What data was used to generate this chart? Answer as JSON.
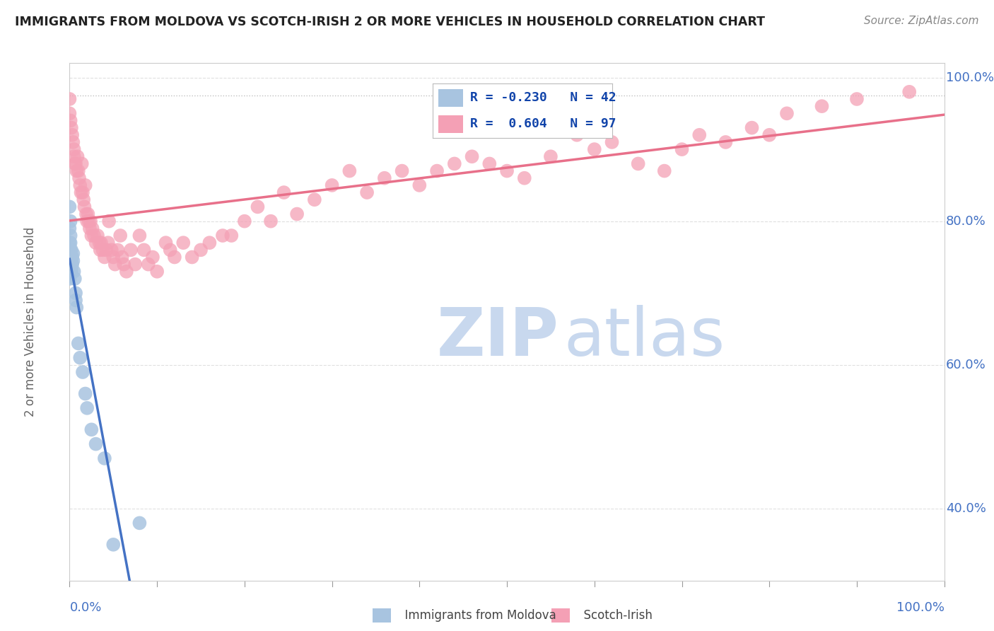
{
  "title": "IMMIGRANTS FROM MOLDOVA VS SCOTCH-IRISH 2 OR MORE VEHICLES IN HOUSEHOLD CORRELATION CHART",
  "source": "Source: ZipAtlas.com",
  "ylabel": "2 or more Vehicles in Household",
  "moldova_color": "#a8c4e0",
  "scotch_color": "#f4a0b5",
  "moldova_line_color": "#4472c4",
  "scotch_line_color": "#e8708a",
  "watermark_zip": "ZIP",
  "watermark_atlas": "atlas",
  "moldova_R": -0.23,
  "moldova_N": 42,
  "scotch_R": 0.604,
  "scotch_N": 97,
  "moldova_scatter": [
    [
      0.0,
      0.82
    ],
    [
      0.0,
      0.79
    ],
    [
      0.0,
      0.77
    ],
    [
      0.0,
      0.76
    ],
    [
      0.0,
      0.75
    ],
    [
      0.0,
      0.74
    ],
    [
      0.0,
      0.735
    ],
    [
      0.0,
      0.73
    ],
    [
      0.0,
      0.72
    ],
    [
      0.001,
      0.8
    ],
    [
      0.001,
      0.78
    ],
    [
      0.001,
      0.77
    ],
    [
      0.001,
      0.76
    ],
    [
      0.001,
      0.755
    ],
    [
      0.001,
      0.75
    ],
    [
      0.001,
      0.745
    ],
    [
      0.001,
      0.74
    ],
    [
      0.001,
      0.73
    ],
    [
      0.002,
      0.76
    ],
    [
      0.002,
      0.75
    ],
    [
      0.002,
      0.74
    ],
    [
      0.002,
      0.735
    ],
    [
      0.002,
      0.73
    ],
    [
      0.003,
      0.75
    ],
    [
      0.003,
      0.74
    ],
    [
      0.004,
      0.755
    ],
    [
      0.004,
      0.745
    ],
    [
      0.005,
      0.73
    ],
    [
      0.006,
      0.72
    ],
    [
      0.007,
      0.7
    ],
    [
      0.007,
      0.69
    ],
    [
      0.008,
      0.68
    ],
    [
      0.01,
      0.63
    ],
    [
      0.012,
      0.61
    ],
    [
      0.015,
      0.59
    ],
    [
      0.018,
      0.56
    ],
    [
      0.02,
      0.54
    ],
    [
      0.025,
      0.51
    ],
    [
      0.03,
      0.49
    ],
    [
      0.04,
      0.47
    ],
    [
      0.05,
      0.35
    ],
    [
      0.08,
      0.38
    ]
  ],
  "scotch_scatter": [
    [
      0.0,
      0.97
    ],
    [
      0.0,
      0.95
    ],
    [
      0.001,
      0.94
    ],
    [
      0.002,
      0.93
    ],
    [
      0.003,
      0.92
    ],
    [
      0.004,
      0.91
    ],
    [
      0.005,
      0.9
    ],
    [
      0.005,
      0.89
    ],
    [
      0.006,
      0.88
    ],
    [
      0.007,
      0.88
    ],
    [
      0.008,
      0.87
    ],
    [
      0.009,
      0.89
    ],
    [
      0.01,
      0.87
    ],
    [
      0.011,
      0.86
    ],
    [
      0.012,
      0.85
    ],
    [
      0.013,
      0.84
    ],
    [
      0.014,
      0.88
    ],
    [
      0.015,
      0.84
    ],
    [
      0.016,
      0.83
    ],
    [
      0.017,
      0.82
    ],
    [
      0.018,
      0.85
    ],
    [
      0.019,
      0.81
    ],
    [
      0.02,
      0.8
    ],
    [
      0.021,
      0.81
    ],
    [
      0.022,
      0.8
    ],
    [
      0.023,
      0.79
    ],
    [
      0.024,
      0.8
    ],
    [
      0.025,
      0.78
    ],
    [
      0.026,
      0.79
    ],
    [
      0.028,
      0.78
    ],
    [
      0.03,
      0.77
    ],
    [
      0.032,
      0.78
    ],
    [
      0.034,
      0.77
    ],
    [
      0.035,
      0.76
    ],
    [
      0.036,
      0.77
    ],
    [
      0.038,
      0.76
    ],
    [
      0.04,
      0.75
    ],
    [
      0.042,
      0.76
    ],
    [
      0.044,
      0.77
    ],
    [
      0.045,
      0.8
    ],
    [
      0.048,
      0.76
    ],
    [
      0.05,
      0.75
    ],
    [
      0.052,
      0.74
    ],
    [
      0.055,
      0.76
    ],
    [
      0.058,
      0.78
    ],
    [
      0.06,
      0.75
    ],
    [
      0.062,
      0.74
    ],
    [
      0.065,
      0.73
    ],
    [
      0.07,
      0.76
    ],
    [
      0.075,
      0.74
    ],
    [
      0.08,
      0.78
    ],
    [
      0.085,
      0.76
    ],
    [
      0.09,
      0.74
    ],
    [
      0.095,
      0.75
    ],
    [
      0.1,
      0.73
    ],
    [
      0.11,
      0.77
    ],
    [
      0.115,
      0.76
    ],
    [
      0.12,
      0.75
    ],
    [
      0.13,
      0.77
    ],
    [
      0.14,
      0.75
    ],
    [
      0.15,
      0.76
    ],
    [
      0.16,
      0.77
    ],
    [
      0.175,
      0.78
    ],
    [
      0.185,
      0.78
    ],
    [
      0.2,
      0.8
    ],
    [
      0.215,
      0.82
    ],
    [
      0.23,
      0.8
    ],
    [
      0.245,
      0.84
    ],
    [
      0.26,
      0.81
    ],
    [
      0.28,
      0.83
    ],
    [
      0.3,
      0.85
    ],
    [
      0.32,
      0.87
    ],
    [
      0.34,
      0.84
    ],
    [
      0.36,
      0.86
    ],
    [
      0.38,
      0.87
    ],
    [
      0.4,
      0.85
    ],
    [
      0.42,
      0.87
    ],
    [
      0.44,
      0.88
    ],
    [
      0.46,
      0.89
    ],
    [
      0.48,
      0.88
    ],
    [
      0.5,
      0.87
    ],
    [
      0.52,
      0.86
    ],
    [
      0.55,
      0.89
    ],
    [
      0.58,
      0.92
    ],
    [
      0.6,
      0.9
    ],
    [
      0.62,
      0.91
    ],
    [
      0.65,
      0.88
    ],
    [
      0.68,
      0.87
    ],
    [
      0.7,
      0.9
    ],
    [
      0.72,
      0.92
    ],
    [
      0.75,
      0.91
    ],
    [
      0.78,
      0.93
    ],
    [
      0.8,
      0.92
    ],
    [
      0.82,
      0.95
    ],
    [
      0.86,
      0.96
    ],
    [
      0.9,
      0.97
    ],
    [
      0.96,
      0.98
    ]
  ],
  "xlim": [
    0.0,
    1.0
  ],
  "ylim": [
    0.3,
    1.02
  ],
  "ytick_values": [
    0.4,
    0.6,
    0.8,
    1.0
  ],
  "ytick_labels": [
    "40.0%",
    "60.0%",
    "80.0%",
    "100.0%"
  ],
  "xtick_left": "0.0%",
  "xtick_right": "100.0%",
  "background_color": "#ffffff",
  "grid_color": "#e0e0e0",
  "title_color": "#222222",
  "axis_label_color": "#4472c4",
  "source_color": "#888888",
  "watermark_color_zip": "#c8d8ee",
  "watermark_color_atlas": "#c8d8ee",
  "legend_blue_color": "#2255bb",
  "legend_text_color": "#1144aa"
}
